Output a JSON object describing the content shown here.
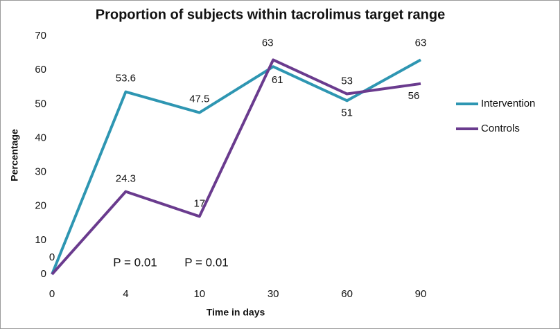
{
  "chart_data": {
    "type": "line",
    "title": "Proportion of subjects within tacrolimus target range",
    "x_label": "Time in days",
    "y_label": "Percentage",
    "categories": [
      "0",
      "4",
      "10",
      "30",
      "60",
      "90"
    ],
    "series": [
      {
        "name": "Intervention",
        "color": "#2e96b2",
        "values": [
          0,
          53.6,
          47.5,
          61,
          51,
          63
        ],
        "value_labels": [
          null,
          "53.6",
          "47.5",
          "61",
          "51",
          "63"
        ]
      },
      {
        "name": "Controls",
        "color": "#6a3b8e",
        "values": [
          0,
          24.3,
          17,
          63,
          53,
          56
        ],
        "value_labels": [
          "0",
          "24.3",
          "17",
          "63",
          "53",
          "56"
        ]
      }
    ],
    "ylim": [
      0,
      70
    ],
    "yticks": [
      0,
      10,
      20,
      30,
      40,
      50,
      60,
      70
    ],
    "grid": false,
    "legend": "right",
    "annotations": [
      "P = 0.01",
      "P = 0.01"
    ]
  }
}
